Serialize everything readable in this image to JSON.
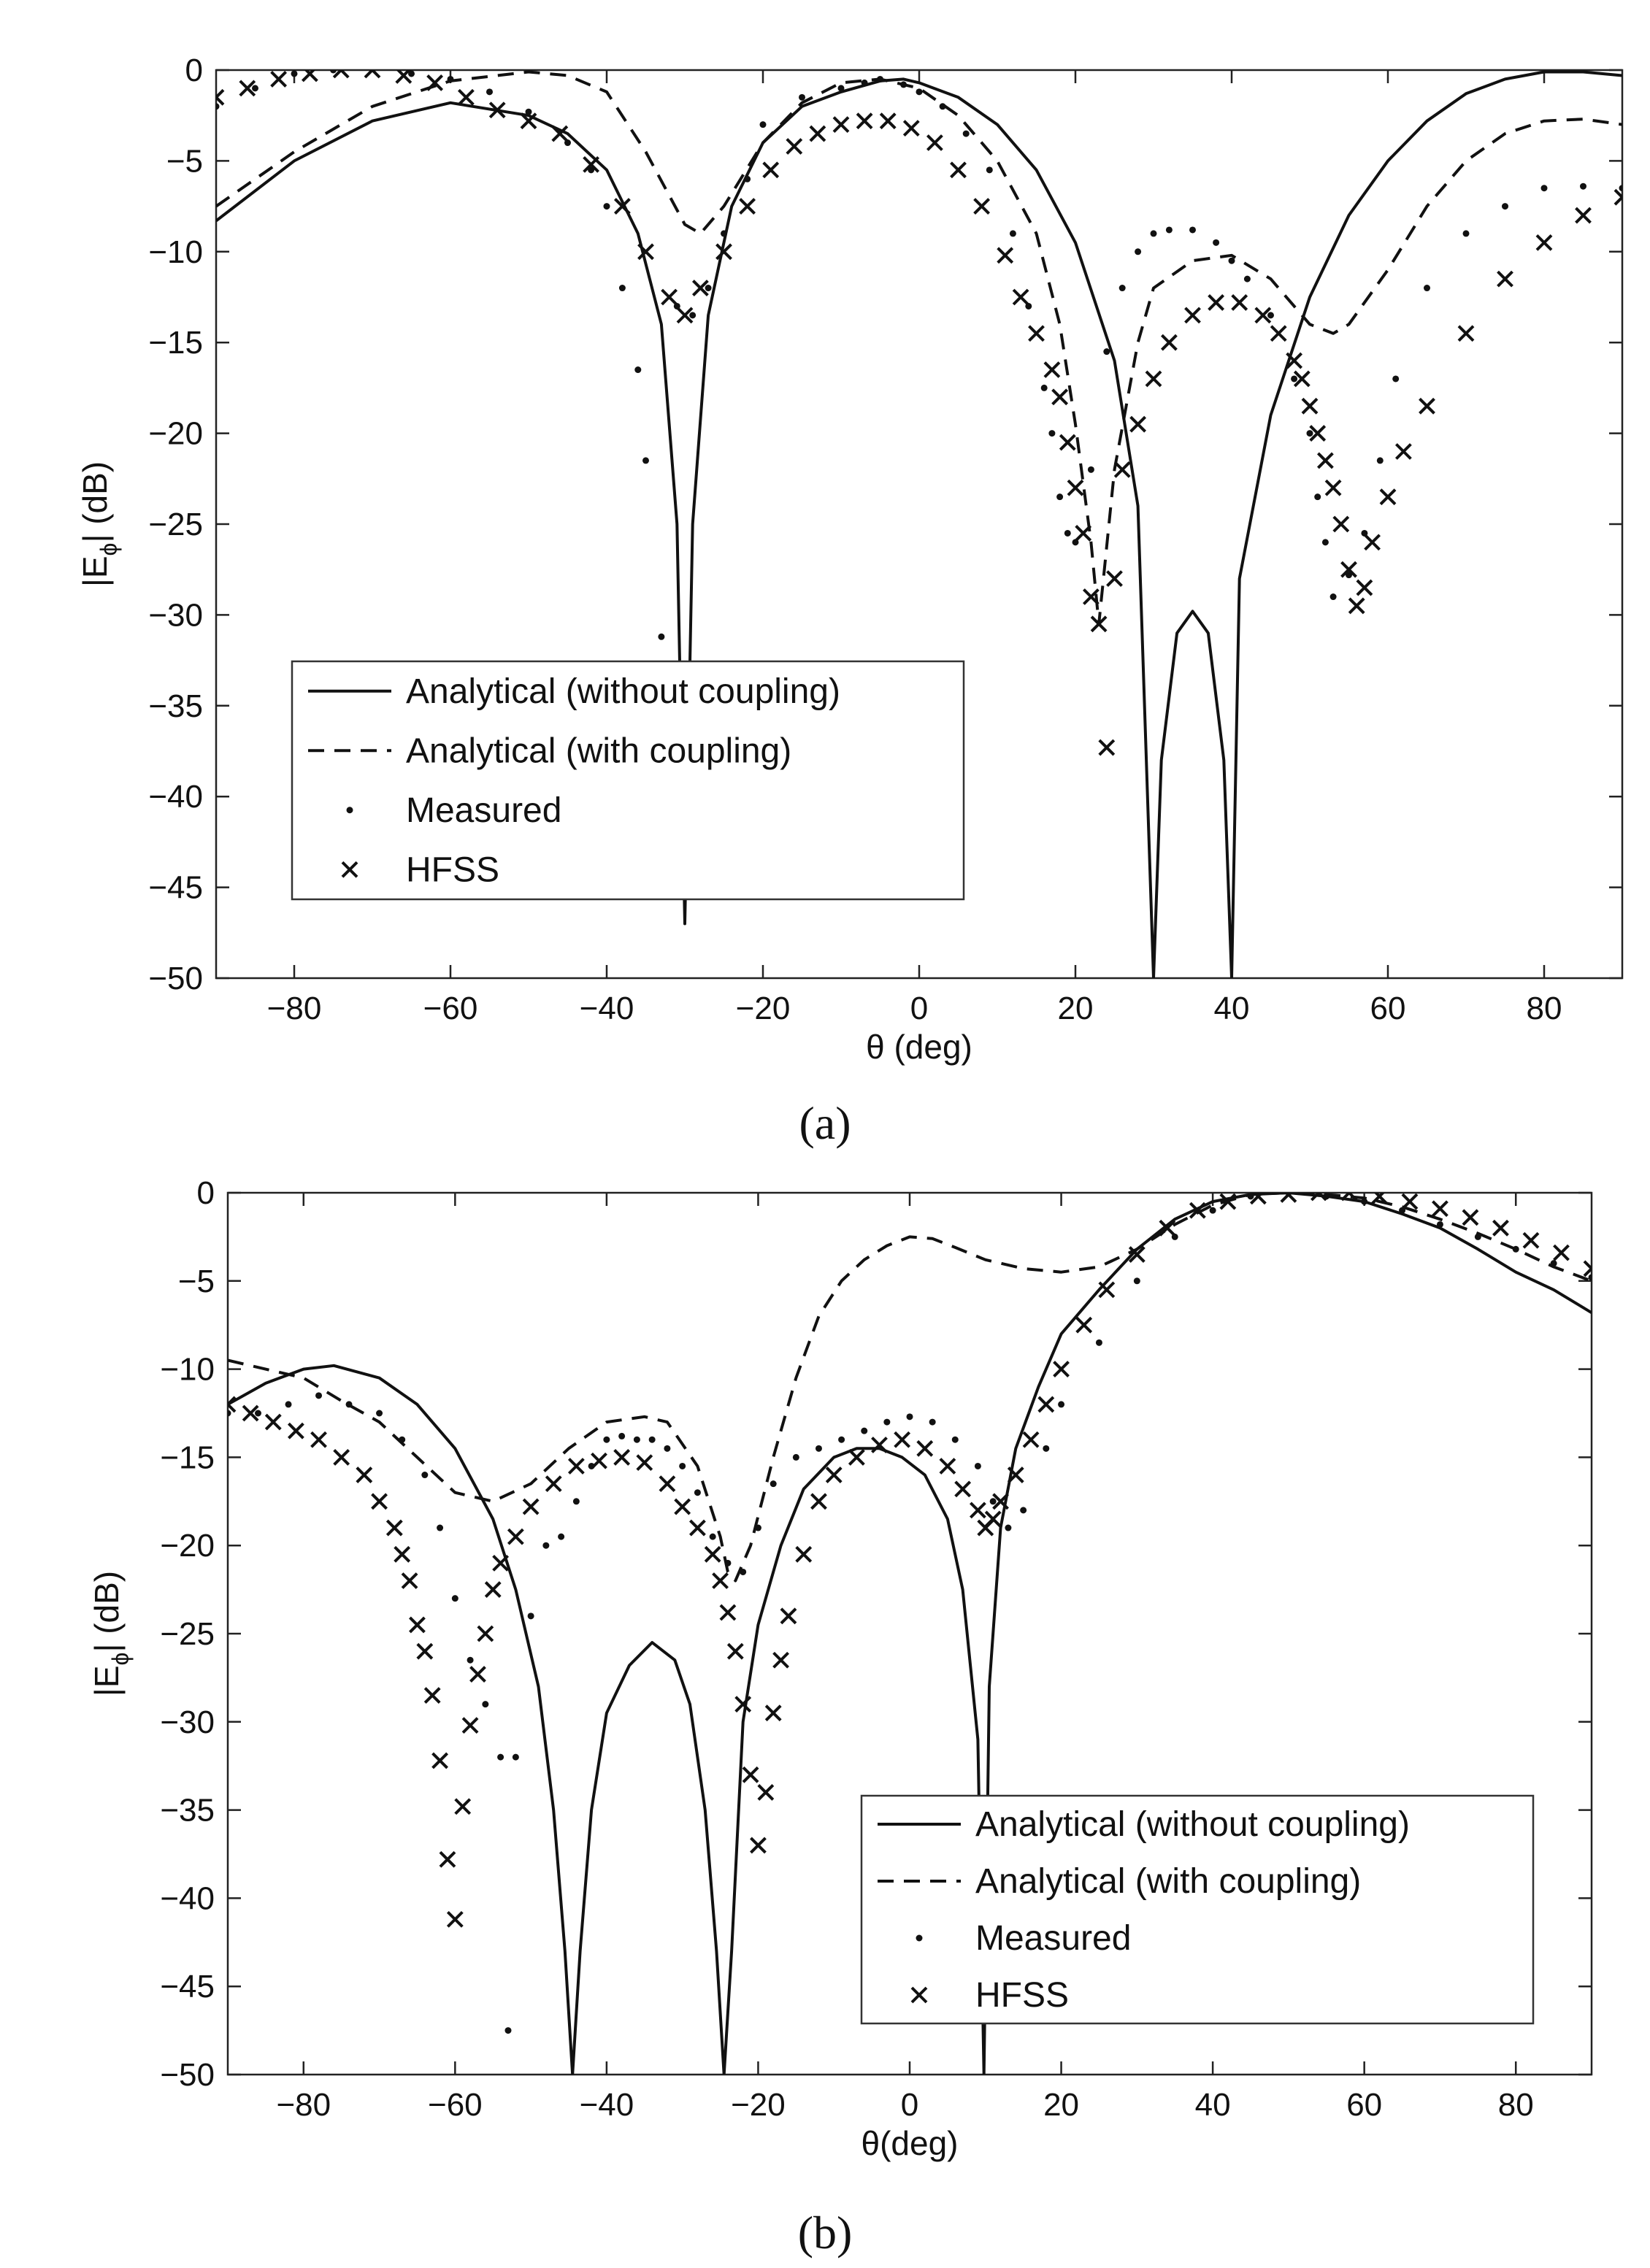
{
  "chart_data": [
    {
      "type": "line",
      "panel_label": "(a)",
      "xlabel": "θ (deg)",
      "ylabel_main": "|E",
      "ylabel_sub": "ϕ",
      "ylabel_end": "| (dB)",
      "xlim": [
        -90,
        90
      ],
      "ylim": [
        -50,
        0
      ],
      "xticks": [
        -80,
        -60,
        -40,
        -20,
        0,
        20,
        40,
        60,
        80
      ],
      "yticks": [
        0,
        -5,
        -10,
        -15,
        -20,
        -25,
        -30,
        -35,
        -40,
        -45,
        -50
      ],
      "legend_position": "lower-left",
      "series": [
        {
          "name": "Analytical (without coupling)",
          "style": "solid",
          "x": [
            -90,
            -80,
            -70,
            -60,
            -50,
            -45,
            -40,
            -36,
            -33,
            -31,
            -30,
            -29,
            -27,
            -24,
            -20,
            -15,
            -10,
            -5,
            -2,
            0,
            5,
            10,
            15,
            20,
            25,
            28,
            30,
            31,
            33,
            35,
            37,
            39,
            40,
            41,
            45,
            50,
            55,
            60,
            65,
            70,
            75,
            80,
            85,
            90
          ],
          "y": [
            -8.3,
            -5,
            -2.8,
            -1.8,
            -2.5,
            -3.5,
            -5.5,
            -9,
            -14,
            -25,
            -47,
            -25,
            -13.5,
            -7.5,
            -4,
            -2,
            -1.2,
            -0.6,
            -0.5,
            -0.7,
            -1.5,
            -3,
            -5.5,
            -9.5,
            -16,
            -24,
            -50,
            -38,
            -31,
            -29.8,
            -31,
            -38,
            -50,
            -28,
            -19,
            -12.5,
            -8,
            -5,
            -2.8,
            -1.3,
            -0.5,
            -0.1,
            -0.1,
            -0.3
          ]
        },
        {
          "name": "Analytical (with coupling)",
          "style": "dashed",
          "x": [
            -90,
            -80,
            -70,
            -60,
            -50,
            -45,
            -40,
            -35,
            -30,
            -28,
            -25,
            -20,
            -15,
            -10,
            -5,
            0,
            5,
            10,
            15,
            18,
            20,
            22,
            23,
            25,
            28,
            30,
            35,
            40,
            45,
            50,
            53,
            55,
            60,
            65,
            70,
            75,
            80,
            85,
            90
          ],
          "y": [
            -7.5,
            -4.5,
            -2,
            -0.6,
            -0.1,
            -0.3,
            -1.2,
            -4.5,
            -8.5,
            -9,
            -7.5,
            -4,
            -1.8,
            -0.7,
            -0.5,
            -1,
            -2.5,
            -5,
            -9,
            -14,
            -19.5,
            -26,
            -30.5,
            -22,
            -15,
            -12,
            -10.5,
            -10.2,
            -11.5,
            -14,
            -14.5,
            -14,
            -11,
            -7.5,
            -5,
            -3.5,
            -2.8,
            -2.7,
            -3
          ]
        },
        {
          "name": "Measured",
          "style": "dots",
          "x": [
            -90,
            -85,
            -80,
            -75,
            -70,
            -65,
            -60,
            -55,
            -50,
            -45,
            -42,
            -40,
            -38,
            -36,
            -35,
            -33,
            -31,
            -29,
            -27,
            -25,
            -22,
            -20,
            -15,
            -10,
            -7,
            -5,
            -2,
            0,
            3,
            6,
            9,
            12,
            14,
            16,
            17,
            18,
            19,
            20,
            22,
            24,
            26,
            28,
            30,
            32,
            35,
            38,
            40,
            42,
            45,
            48,
            50,
            51,
            52,
            53,
            55,
            57,
            59,
            61,
            65,
            70,
            75,
            80,
            85,
            90
          ],
          "y": [
            -2,
            -1,
            -0.2,
            0,
            0.1,
            -0.2,
            -0.5,
            -1.2,
            -2.3,
            -4,
            -5.5,
            -7.5,
            -12,
            -16.5,
            -21.5,
            -31.2,
            -13,
            -13.5,
            -12,
            -9,
            -6,
            -3,
            -1.5,
            -1,
            -0.7,
            -0.5,
            -0.8,
            -1.2,
            -2,
            -3.5,
            -5.5,
            -9,
            -13,
            -17.5,
            -20,
            -23.5,
            -25.5,
            -26,
            -22,
            -15.5,
            -12,
            -10,
            -9,
            -8.8,
            -8.8,
            -9.5,
            -10.5,
            -11.5,
            -13.5,
            -17,
            -20,
            -23.5,
            -26,
            -29,
            -27.8,
            -25.5,
            -21.5,
            -17,
            -12,
            -9,
            -7.5,
            -6.5,
            -6.4,
            -6.5
          ]
        },
        {
          "name": "HFSS",
          "style": "x-marker",
          "x": [
            -90,
            -86,
            -82,
            -78,
            -74,
            -70,
            -66,
            -62,
            -58,
            -54,
            -50,
            -46,
            -42,
            -38,
            -35,
            -32,
            -30,
            -28,
            -25,
            -22,
            -19,
            -16,
            -13,
            -10,
            -7,
            -4,
            -1,
            2,
            5,
            8,
            11,
            13,
            15,
            17,
            18,
            19,
            20,
            21,
            22,
            23,
            24,
            25,
            26,
            28,
            30,
            32,
            35,
            38,
            41,
            44,
            46,
            48,
            49,
            50,
            51,
            52,
            53,
            54,
            55,
            56,
            57,
            58,
            60,
            62,
            65,
            70,
            75,
            80,
            85,
            90
          ],
          "y": [
            -1.5,
            -1,
            -0.5,
            -0.2,
            0,
            0,
            -0.3,
            -0.7,
            -1.5,
            -2.2,
            -2.8,
            -3.5,
            -5.2,
            -7.5,
            -10,
            -12.5,
            -13.5,
            -12,
            -10,
            -7.5,
            -5.5,
            -4.2,
            -3.5,
            -3,
            -2.8,
            -2.8,
            -3.2,
            -4,
            -5.5,
            -7.5,
            -10.2,
            -12.5,
            -14.5,
            -16.5,
            -18,
            -20.5,
            -23,
            -25.5,
            -29,
            -30.5,
            -37.3,
            -28,
            -22,
            -19.5,
            -17,
            -15,
            -13.5,
            -12.8,
            -12.8,
            -13.5,
            -14.5,
            -16,
            -17,
            -18.5,
            -20,
            -21.5,
            -23,
            -25,
            -27.5,
            -29.5,
            -28.5,
            -26,
            -23.5,
            -21,
            -18.5,
            -14.5,
            -11.5,
            -9.5,
            -8,
            -7
          ]
        }
      ]
    },
    {
      "type": "line",
      "panel_label": "(b)",
      "xlabel": "θ(deg)",
      "ylabel_main": "|E",
      "ylabel_sub": "ϕ",
      "ylabel_end": "| (dB)",
      "xlim": [
        -90,
        90
      ],
      "ylim": [
        -50,
        0
      ],
      "xticks": [
        -80,
        -60,
        -40,
        -20,
        0,
        20,
        40,
        60,
        80
      ],
      "yticks": [
        0,
        -5,
        -10,
        -15,
        -20,
        -25,
        -30,
        -35,
        -40,
        -45,
        -50
      ],
      "legend_position": "lower-right",
      "series": [
        {
          "name": "Analytical (without coupling)",
          "style": "solid",
          "x": [
            -90,
            -85,
            -80,
            -76,
            -70,
            -65,
            -60,
            -55,
            -52,
            -49,
            -47,
            -45.5,
            -44.5,
            -43.5,
            -42,
            -40,
            -37,
            -34,
            -31,
            -29,
            -27,
            -25.5,
            -24.5,
            -23.5,
            -22,
            -20,
            -17,
            -14,
            -10,
            -7,
            -4,
            -1,
            2,
            5,
            7,
            9,
            9.8,
            10.5,
            12,
            14,
            17,
            20,
            25,
            30,
            35,
            40,
            45,
            50,
            55,
            60,
            65,
            70,
            75,
            80,
            85,
            90
          ],
          "y": [
            -12,
            -10.8,
            -10,
            -9.8,
            -10.5,
            -12,
            -14.5,
            -18.5,
            -22.5,
            -28,
            -35,
            -43,
            -50,
            -43,
            -35,
            -29.5,
            -26.8,
            -25.5,
            -26.5,
            -29,
            -35,
            -43,
            -50,
            -43,
            -30,
            -24.5,
            -20,
            -16.8,
            -15,
            -14.5,
            -14.5,
            -15,
            -16,
            -18.5,
            -22.5,
            -31,
            -50,
            -28,
            -19,
            -14.5,
            -11,
            -8,
            -5.5,
            -3.2,
            -1.5,
            -0.5,
            -0.1,
            0,
            -0.2,
            -0.5,
            -1.2,
            -2,
            -3.2,
            -4.5,
            -5.5,
            -6.8
          ]
        },
        {
          "name": "Analytical (with coupling)",
          "style": "dashed",
          "x": [
            -90,
            -80,
            -75,
            -70,
            -65,
            -60,
            -55,
            -50,
            -45,
            -40,
            -35,
            -32,
            -28,
            -25,
            -24,
            -23,
            -21,
            -18,
            -15,
            -12,
            -9,
            -6,
            -3,
            0,
            3,
            6,
            10,
            15,
            20,
            25,
            30,
            35,
            40,
            45,
            50,
            55,
            60,
            65,
            70,
            75,
            80,
            85,
            90
          ],
          "y": [
            -9.5,
            -10.5,
            -11.8,
            -13,
            -15,
            -17,
            -17.5,
            -16.5,
            -14.5,
            -13,
            -12.7,
            -13,
            -15.5,
            -19.5,
            -21.5,
            -22,
            -20,
            -15,
            -10.5,
            -7,
            -5,
            -3.8,
            -3,
            -2.5,
            -2.6,
            -3.1,
            -3.8,
            -4.3,
            -4.5,
            -4.2,
            -3.2,
            -1.8,
            -0.7,
            -0.1,
            0,
            -0.1,
            -0.3,
            -0.8,
            -1.5,
            -2.3,
            -3.2,
            -4.2,
            -5
          ]
        },
        {
          "name": "Measured",
          "style": "dots",
          "x": [
            -90,
            -86,
            -82,
            -78,
            -74,
            -70,
            -67,
            -64,
            -62,
            -60,
            -58,
            -56,
            -54,
            -53,
            -52,
            -50,
            -48,
            -46,
            -44,
            -42,
            -40,
            -38,
            -36,
            -34,
            -32,
            -30,
            -28,
            -26,
            -24,
            -22,
            -20,
            -18,
            -15,
            -12,
            -9,
            -6,
            -3,
            0,
            3,
            6,
            9,
            11,
            13,
            15,
            18,
            20,
            25,
            30,
            35,
            40,
            45,
            50,
            55,
            60,
            65,
            70,
            75,
            80,
            85,
            90
          ],
          "y": [
            -12.5,
            -12.5,
            -12,
            -11.5,
            -12,
            -12.5,
            -14,
            -16,
            -19,
            -23,
            -26.5,
            -29,
            -32,
            -47.5,
            -32,
            -24,
            -20,
            -19.5,
            -17.5,
            -15.5,
            -14,
            -13.8,
            -14,
            -14,
            -14.5,
            -15.5,
            -17,
            -19.5,
            -21,
            -21.5,
            -19,
            -16.5,
            -15,
            -14.5,
            -14,
            -13.5,
            -13,
            -12.7,
            -13,
            -14,
            -15.5,
            -17.5,
            -19,
            -18,
            -14.5,
            -12,
            -8.5,
            -5,
            -2.5,
            -1,
            -0.2,
            0,
            -0.2,
            -0.5,
            -1,
            -1.8,
            -2.5,
            -3.2,
            -4,
            -4.8
          ]
        },
        {
          "name": "HFSS",
          "style": "x-marker",
          "x": [
            -90,
            -87,
            -84,
            -81,
            -78,
            -75,
            -72,
            -70,
            -68,
            -67,
            -66,
            -65,
            -64,
            -63,
            -62,
            -61,
            -60,
            -59,
            -58,
            -57,
            -56,
            -55,
            -54,
            -52,
            -50,
            -47,
            -44,
            -41,
            -38,
            -35,
            -32,
            -30,
            -28,
            -26,
            -25,
            -24,
            -23,
            -22,
            -21,
            -20,
            -19,
            -18,
            -17,
            -16,
            -14,
            -12,
            -10,
            -7,
            -4,
            -1,
            2,
            5,
            7,
            9,
            10,
            11,
            12,
            14,
            16,
            18,
            20,
            23,
            26,
            30,
            34,
            38,
            42,
            46,
            50,
            54,
            58,
            62,
            66,
            70,
            74,
            78,
            82,
            86,
            90
          ],
          "y": [
            -12,
            -12.5,
            -13,
            -13.5,
            -14,
            -15,
            -16,
            -17.5,
            -19,
            -20.5,
            -22,
            -24.5,
            -26,
            -28.5,
            -32.2,
            -37.8,
            -41.2,
            -34.8,
            -30.2,
            -27.3,
            -25,
            -22.5,
            -21,
            -19.5,
            -17.8,
            -16.5,
            -15.5,
            -15.2,
            -15,
            -15.3,
            -16.5,
            -17.8,
            -19,
            -20.5,
            -22,
            -23.8,
            -26,
            -29,
            -33,
            -37,
            -34,
            -29.5,
            -26.5,
            -24,
            -20.5,
            -17.5,
            -16,
            -15,
            -14.3,
            -14,
            -14.5,
            -15.5,
            -16.8,
            -18,
            -19,
            -18.5,
            -17.5,
            -16,
            -14,
            -12,
            -10,
            -7.5,
            -5.5,
            -3.5,
            -2,
            -1,
            -0.5,
            -0.2,
            -0.1,
            0,
            0,
            -0.2,
            -0.5,
            -0.9,
            -1.4,
            -2,
            -2.7,
            -3.4,
            -4.3
          ]
        }
      ]
    }
  ]
}
